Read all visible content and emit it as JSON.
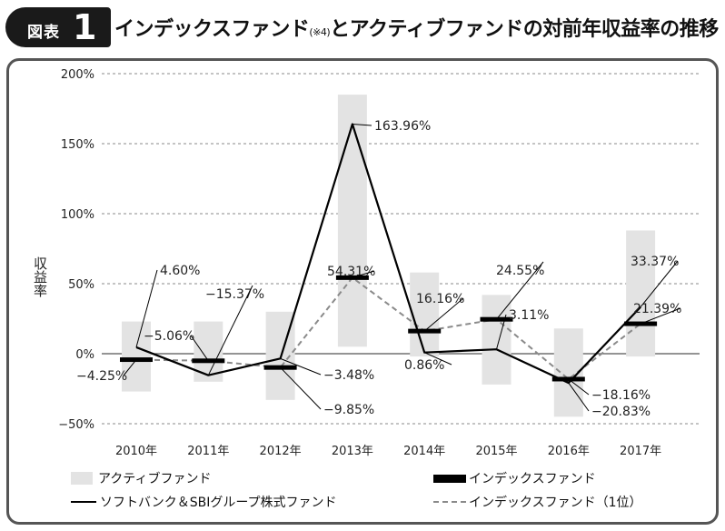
{
  "header": {
    "badge_label": "図表",
    "badge_number": "1",
    "title_part1": "インデックスファンド",
    "title_note": "(※4)",
    "title_part2": "とアクティブファンドの対前年収益率の推移"
  },
  "chart_data": {
    "type": "line",
    "categories": [
      "2010年",
      "2011年",
      "2012年",
      "2013年",
      "2014年",
      "2015年",
      "2016年",
      "2017年"
    ],
    "ylabel": "収益率",
    "ylim": [
      -50,
      200
    ],
    "yticks": [
      -50,
      0,
      50,
      100,
      150,
      200
    ],
    "ytick_labels": [
      "−50%",
      "0%",
      "50%",
      "100%",
      "150%",
      "200%"
    ],
    "grid": "horizontal dashed",
    "active_fund_ranges": [
      [
        -27,
        23
      ],
      [
        -20,
        23
      ],
      [
        -33,
        30
      ],
      [
        5,
        185
      ],
      [
        -2,
        58
      ],
      [
        -22,
        42
      ],
      [
        -45,
        18
      ],
      [
        -2,
        88
      ]
    ],
    "index_fund_values": [
      -4.25,
      -5.06,
      -9.85,
      54.31,
      16.16,
      24.55,
      -18.16,
      21.39
    ],
    "series": [
      {
        "name": "ソフトバンク＆SBIグループ株式ファンド",
        "values": [
          4.6,
          -15.37,
          -3.48,
          163.96,
          0.86,
          3.11,
          -20.83,
          33.37
        ]
      },
      {
        "name": "インデックスファンド（1位）",
        "values": [
          -4.25,
          -5.06,
          -9.85,
          54.31,
          16.16,
          24.55,
          -18.16,
          21.39
        ]
      }
    ],
    "data_labels": [
      "4.60%",
      "−4.25%",
      "−5.06%",
      "−15.37%",
      "−3.48%",
      "−9.85%",
      "163.96%",
      "54.31%",
      "16.16%",
      "0.86%",
      "24.55%",
      "3.11%",
      "−18.16%",
      "−20.83%",
      "33.37%",
      "21.39%"
    ],
    "legend": {
      "position": "bottom",
      "active_fund": "アクティブファンド",
      "index_fund": "インデックスファンド",
      "sbi_fund": "ソフトバンク＆SBIグループ株式ファンド",
      "index_top": "インデックスファンド（1位）"
    },
    "colors": {
      "bar": "#e3e3e3",
      "sbi": "#000000",
      "index_top": "#8a8a8a",
      "marker": "#000000",
      "grid": "#888888"
    }
  }
}
